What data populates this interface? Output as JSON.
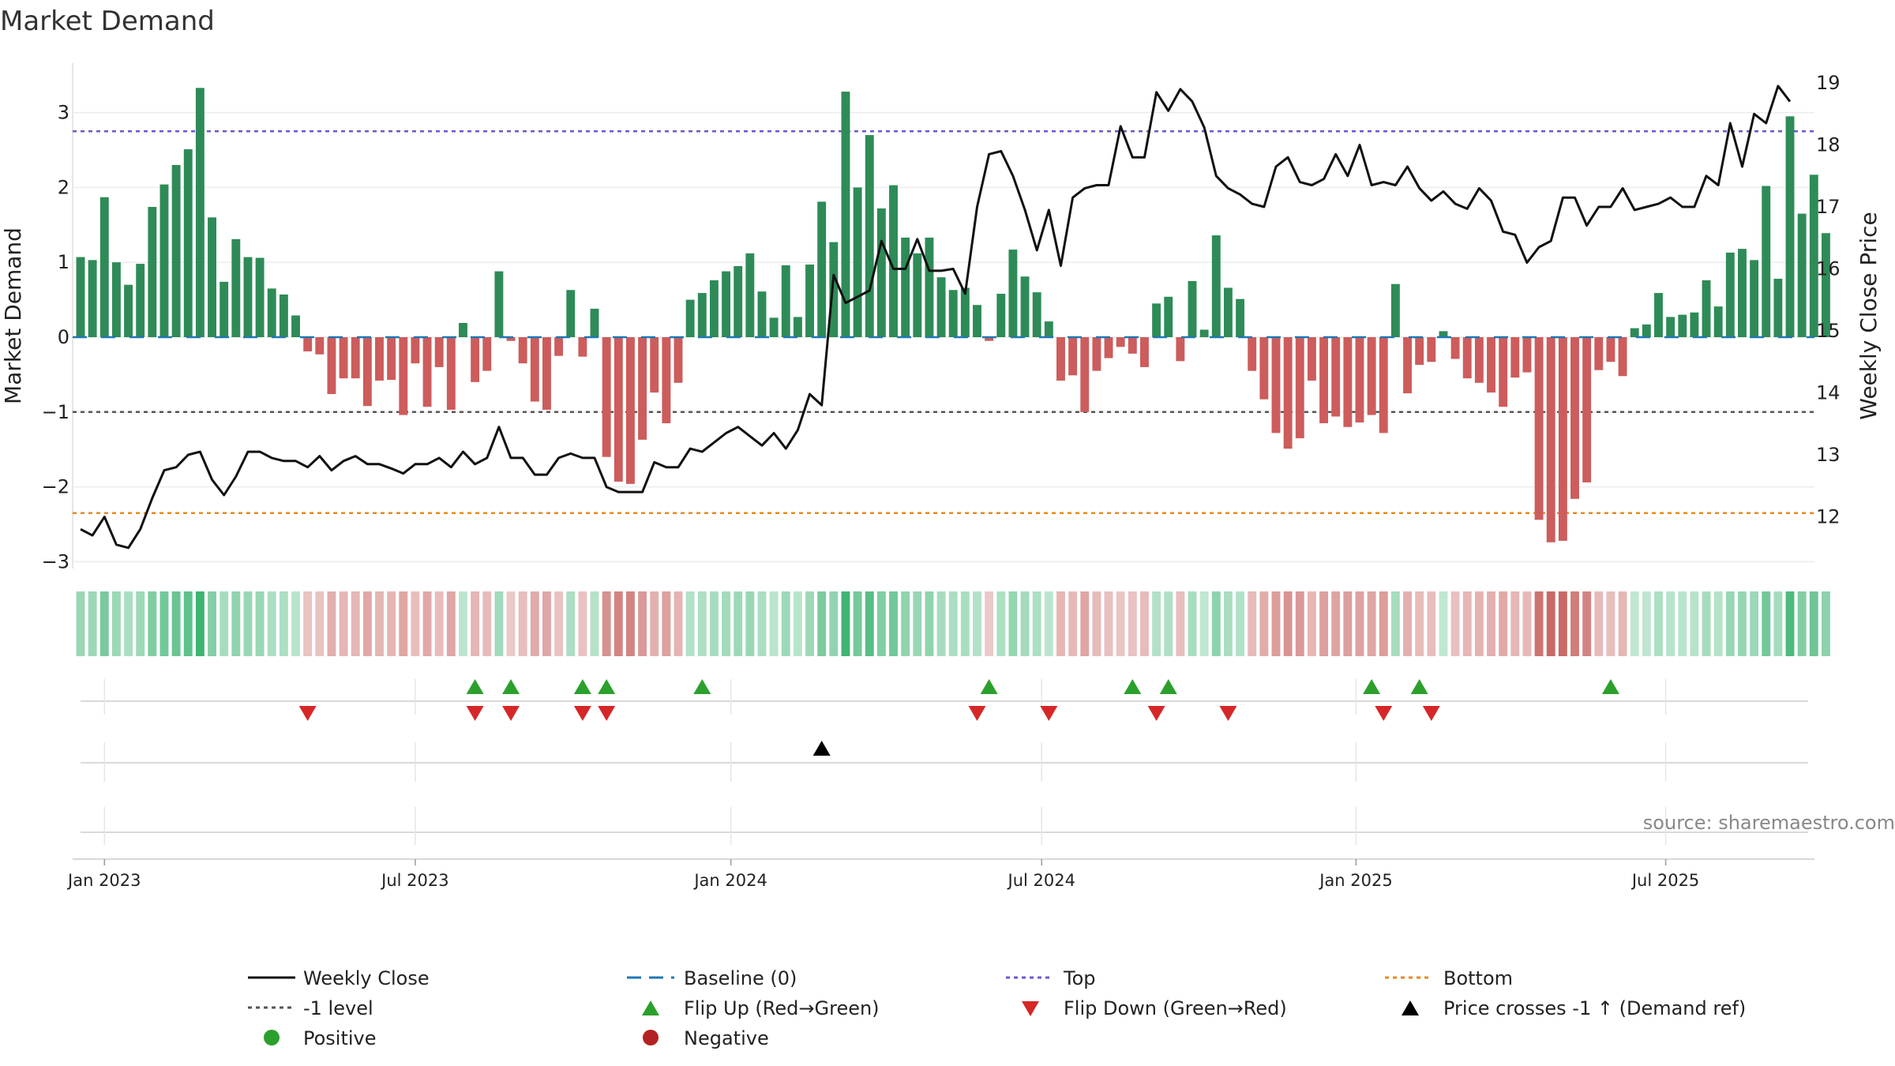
{
  "chart_data": {
    "type": "bar",
    "title": "Market Demand",
    "ylabel": "Market Demand",
    "y2label": "Weekly Close Price",
    "ylim": [
      -3.3,
      3.6
    ],
    "y2lim": [
      11.0,
      19.2
    ],
    "yticks": [
      3,
      2,
      1,
      0,
      -1,
      -2,
      -3
    ],
    "ytick_labels": [
      "3",
      "2",
      "1",
      "0",
      "−1",
      "−2",
      "−3"
    ],
    "y2ticks": [
      19,
      18,
      17,
      16,
      15,
      14,
      13,
      12
    ],
    "y2tick_labels": [
      "19",
      "18",
      "17",
      "16",
      "15",
      "14",
      "13",
      "12"
    ],
    "xticks": [
      {
        "label": "Jan 2023",
        "week": 2
      },
      {
        "label": "Jul 2023",
        "week": 28
      },
      {
        "label": "Jan 2024",
        "week": 54.4
      },
      {
        "label": "Jul 2024",
        "week": 80.4
      },
      {
        "label": "Jan 2025",
        "week": 106.7
      },
      {
        "label": "Jul 2025",
        "week": 132.6
      }
    ],
    "levels": {
      "top": 2.75,
      "minus_one": -1.0,
      "bottom": -2.35,
      "baseline": 0
    },
    "demand": [
      1.07,
      1.03,
      1.87,
      1.0,
      0.7,
      0.98,
      1.74,
      2.04,
      2.3,
      2.51,
      3.33,
      1.6,
      0.74,
      1.31,
      1.07,
      1.06,
      0.65,
      0.57,
      0.29,
      -0.19,
      -0.23,
      -0.76,
      -0.55,
      -0.55,
      -0.92,
      -0.58,
      -0.57,
      -1.04,
      -0.35,
      -0.93,
      -0.4,
      -0.97,
      0.19,
      -0.6,
      -0.45,
      0.88,
      -0.05,
      -0.35,
      -0.86,
      -0.97,
      -0.25,
      0.63,
      -0.26,
      0.38,
      -1.6,
      -1.93,
      -1.96,
      -1.37,
      -0.74,
      -1.15,
      -0.61,
      0.5,
      0.59,
      0.76,
      0.88,
      0.95,
      1.12,
      0.61,
      0.26,
      0.96,
      0.27,
      0.97,
      1.81,
      1.27,
      3.28,
      2.0,
      2.7,
      1.72,
      2.03,
      1.33,
      1.12,
      1.33,
      0.8,
      0.63,
      0.66,
      0.43,
      -0.05,
      0.58,
      1.17,
      0.81,
      0.6,
      0.21,
      -0.58,
      -0.51,
      -1.0,
      -0.45,
      -0.28,
      -0.13,
      -0.22,
      -0.4,
      0.45,
      0.54,
      -0.32,
      0.75,
      0.1,
      1.36,
      0.66,
      0.51,
      -0.45,
      -0.83,
      -1.28,
      -1.49,
      -1.35,
      -0.58,
      -1.15,
      -1.06,
      -1.2,
      -1.14,
      -1.04,
      -1.28,
      0.71,
      -0.75,
      -0.37,
      -0.33,
      0.08,
      -0.29,
      -0.55,
      -0.61,
      -0.74,
      -0.93,
      -0.54,
      -0.47,
      -2.44,
      -2.74,
      -2.72,
      -2.16,
      -1.94,
      -0.44,
      -0.33,
      -0.52,
      0.12,
      0.17,
      0.59,
      0.27,
      0.3,
      0.33,
      0.76,
      0.41,
      1.13,
      1.18,
      1.03,
      2.02,
      0.78,
      2.95,
      1.65,
      2.17,
      1.39
    ],
    "price": [
      11.8,
      11.7,
      12.0,
      11.55,
      11.5,
      11.8,
      12.3,
      12.75,
      12.8,
      13.0,
      13.05,
      12.6,
      12.35,
      12.65,
      13.05,
      13.05,
      12.95,
      12.9,
      12.9,
      12.8,
      12.98,
      12.75,
      12.9,
      12.98,
      12.85,
      12.85,
      12.78,
      12.7,
      12.85,
      12.85,
      12.95,
      12.8,
      13.05,
      12.85,
      12.95,
      13.45,
      12.95,
      12.95,
      12.68,
      12.68,
      12.95,
      13.02,
      12.95,
      12.95,
      12.48,
      12.4,
      12.4,
      12.4,
      12.88,
      12.8,
      12.8,
      13.1,
      13.05,
      13.2,
      13.35,
      13.45,
      13.3,
      13.15,
      13.35,
      13.1,
      13.4,
      13.98,
      13.8,
      15.9,
      15.45,
      15.55,
      15.65,
      16.45,
      16.0,
      16.0,
      16.48,
      15.97,
      15.97,
      16.0,
      15.6,
      17.0,
      17.85,
      17.9,
      17.5,
      16.95,
      16.3,
      16.95,
      16.05,
      17.15,
      17.3,
      17.35,
      17.35,
      18.3,
      17.8,
      17.8,
      18.85,
      18.55,
      18.9,
      18.7,
      18.28,
      17.5,
      17.3,
      17.2,
      17.05,
      17.0,
      17.65,
      17.8,
      17.4,
      17.35,
      17.45,
      17.85,
      17.5,
      18.0,
      17.35,
      17.4,
      17.35,
      17.65,
      17.3,
      17.1,
      17.25,
      17.05,
      16.97,
      17.3,
      17.1,
      16.6,
      16.55,
      16.1,
      16.35,
      16.45,
      17.15,
      17.15,
      16.7,
      17.0,
      17.0,
      17.3,
      16.95,
      17.0,
      17.05,
      17.15,
      17.0,
      17.0,
      17.5,
      17.35,
      18.35,
      17.65,
      18.5,
      18.35,
      18.95,
      18.7
    ]
  },
  "flips_up_weeks": [
    33,
    36,
    42,
    44,
    52,
    76,
    88,
    91,
    108,
    112,
    128
  ],
  "flips_down_weeks": [
    19,
    33,
    36,
    42,
    44,
    75,
    81,
    90,
    96,
    109,
    113
  ],
  "price_cross_weeks": [
    62
  ],
  "source": "source: sharemaestro.com",
  "colors": {
    "positive": "#2e8b57",
    "negative": "#cd5c5c",
    "price": "#111111",
    "baseline": "#1f77b4",
    "top": "#6a5acd",
    "minus_one": "#555555",
    "bottom": "#e8891d",
    "flip_up": "#2ca02c",
    "flip_down": "#d62728",
    "cross": "#000000",
    "legend_positive": "#2ca02c",
    "legend_negative": "#b22222"
  },
  "legend": [
    {
      "key": "weekly_close",
      "label": "Weekly Close"
    },
    {
      "key": "baseline",
      "label": "Baseline (0)"
    },
    {
      "key": "top",
      "label": "Top"
    },
    {
      "key": "bottom",
      "label": "Bottom"
    },
    {
      "key": "minus_one",
      "label": "-1 level"
    },
    {
      "key": "flip_up",
      "label": "Flip Up (Red→Green)"
    },
    {
      "key": "flip_down",
      "label": "Flip Down (Green→Red)"
    },
    {
      "key": "price_cross",
      "label": "Price crosses -1 ↑ (Demand ref)"
    },
    {
      "key": "positive",
      "label": "Positive"
    },
    {
      "key": "negative",
      "label": "Negative"
    }
  ]
}
